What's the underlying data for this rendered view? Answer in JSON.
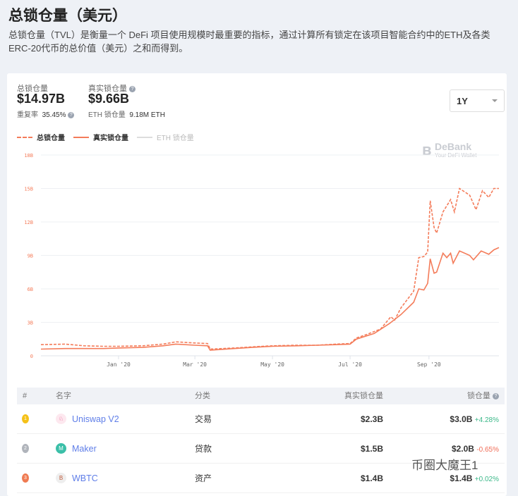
{
  "header": {
    "title": "总锁仓量（美元）",
    "description": "总锁仓量（TVL）是衡量一个 DeFi 项目使用规模时最重要的指标，通过计算所有锁定在该项目智能合约中的ETH及各类ERC-20代币的总价值（美元）之和而得到。"
  },
  "stats": {
    "tvl_label": "总锁仓量",
    "tvl_value": "$14.97B",
    "dup_label": "重复率",
    "dup_value": "35.45%",
    "real_label": "真实锁仓量",
    "real_value": "$9.66B",
    "eth_label": "ETH 锁仓量",
    "eth_value": "9.18M ETH"
  },
  "range_select": {
    "value": "1Y"
  },
  "legend": {
    "total": "总锁仓量",
    "real": "真实锁仓量",
    "eth": "ETH 锁仓量"
  },
  "watermark": {
    "brand": "DeBank",
    "tagline": "Your DeFi Wallet"
  },
  "colors": {
    "accent": "#f47c5a",
    "link": "#5f7ee8",
    "up": "#3bb889",
    "down": "#f06b55"
  },
  "chart_data": {
    "type": "line",
    "ylim": [
      0,
      18
    ],
    "y_ticks": [
      "0",
      "3B",
      "6B",
      "9B",
      "12B",
      "15B",
      "18B"
    ],
    "x_ticks": [
      {
        "date": "2020-01-01",
        "label": "Jan '20"
      },
      {
        "date": "2020-03-01",
        "label": "Mar '20"
      },
      {
        "date": "2020-05-01",
        "label": "May '20"
      },
      {
        "date": "2020-07-01",
        "label": "Jul '20"
      },
      {
        "date": "2020-09-01",
        "label": "Sep '20"
      }
    ],
    "xlim": [
      "2019-11-01",
      "2020-10-26"
    ],
    "series": [
      {
        "name": "总锁仓量",
        "style": "dashed",
        "points": [
          [
            "2019-11-01",
            1.0
          ],
          [
            "2019-11-20",
            1.05
          ],
          [
            "2019-12-05",
            0.9
          ],
          [
            "2019-12-20",
            0.85
          ],
          [
            "2020-01-01",
            0.85
          ],
          [
            "2020-01-20",
            0.9
          ],
          [
            "2020-02-05",
            1.05
          ],
          [
            "2020-02-15",
            1.25
          ],
          [
            "2020-03-01",
            1.15
          ],
          [
            "2020-03-11",
            1.1
          ],
          [
            "2020-03-13",
            0.6
          ],
          [
            "2020-04-01",
            0.7
          ],
          [
            "2020-04-15",
            0.8
          ],
          [
            "2020-05-01",
            0.9
          ],
          [
            "2020-05-20",
            0.95
          ],
          [
            "2020-06-05",
            0.95
          ],
          [
            "2020-06-20",
            1.05
          ],
          [
            "2020-07-01",
            1.1
          ],
          [
            "2020-07-06",
            1.6
          ],
          [
            "2020-07-15",
            1.95
          ],
          [
            "2020-07-25",
            2.4
          ],
          [
            "2020-08-02",
            3.5
          ],
          [
            "2020-08-05",
            3.2
          ],
          [
            "2020-08-10",
            4.3
          ],
          [
            "2020-08-20",
            5.8
          ],
          [
            "2020-08-24",
            8.8
          ],
          [
            "2020-08-28",
            8.9
          ],
          [
            "2020-08-31",
            9.3
          ],
          [
            "2020-09-02",
            13.9
          ],
          [
            "2020-09-05",
            11.5
          ],
          [
            "2020-09-07",
            11.0
          ],
          [
            "2020-09-12",
            12.9
          ],
          [
            "2020-09-18",
            14.0
          ],
          [
            "2020-09-21",
            12.9
          ],
          [
            "2020-09-25",
            15.0
          ],
          [
            "2020-10-03",
            14.4
          ],
          [
            "2020-10-08",
            13.1
          ],
          [
            "2020-10-13",
            14.8
          ],
          [
            "2020-10-18",
            14.2
          ],
          [
            "2020-10-22",
            15.0
          ],
          [
            "2020-10-26",
            15.0
          ]
        ]
      },
      {
        "name": "真实锁仓量",
        "style": "solid",
        "points": [
          [
            "2019-11-01",
            0.6
          ],
          [
            "2019-11-20",
            0.65
          ],
          [
            "2019-12-20",
            0.65
          ],
          [
            "2020-01-01",
            0.7
          ],
          [
            "2020-01-20",
            0.75
          ],
          [
            "2020-02-05",
            0.9
          ],
          [
            "2020-02-15",
            1.05
          ],
          [
            "2020-03-01",
            0.95
          ],
          [
            "2020-03-11",
            0.9
          ],
          [
            "2020-03-13",
            0.5
          ],
          [
            "2020-04-01",
            0.65
          ],
          [
            "2020-04-15",
            0.75
          ],
          [
            "2020-05-01",
            0.85
          ],
          [
            "2020-05-20",
            0.9
          ],
          [
            "2020-06-05",
            0.95
          ],
          [
            "2020-06-20",
            1.0
          ],
          [
            "2020-07-01",
            1.05
          ],
          [
            "2020-07-06",
            1.5
          ],
          [
            "2020-07-20",
            2.0
          ],
          [
            "2020-08-01",
            2.9
          ],
          [
            "2020-08-10",
            3.7
          ],
          [
            "2020-08-20",
            4.8
          ],
          [
            "2020-08-24",
            6.0
          ],
          [
            "2020-08-28",
            5.9
          ],
          [
            "2020-08-31",
            6.5
          ],
          [
            "2020-09-02",
            8.7
          ],
          [
            "2020-09-05",
            7.4
          ],
          [
            "2020-09-07",
            7.5
          ],
          [
            "2020-09-12",
            9.2
          ],
          [
            "2020-09-15",
            8.8
          ],
          [
            "2020-09-18",
            9.2
          ],
          [
            "2020-09-20",
            8.3
          ],
          [
            "2020-09-25",
            9.4
          ],
          [
            "2020-10-03",
            9.0
          ],
          [
            "2020-10-06",
            8.6
          ],
          [
            "2020-10-12",
            9.4
          ],
          [
            "2020-10-18",
            9.1
          ],
          [
            "2020-10-22",
            9.5
          ],
          [
            "2020-10-26",
            9.7
          ]
        ]
      }
    ]
  },
  "table": {
    "headers": [
      "#",
      "名字",
      "分类",
      "真实锁仓量",
      "锁仓量"
    ],
    "rows": [
      {
        "rank": "1",
        "name": "Uniswap V2",
        "category": "交易",
        "real": "$2.3B",
        "tvl": "$3.0B",
        "change": "+4.28%",
        "dir": "up"
      },
      {
        "rank": "2",
        "name": "Maker",
        "category": "贷款",
        "real": "$1.5B",
        "tvl": "$2.0B",
        "change": "-0.65%",
        "dir": "down"
      },
      {
        "rank": "3",
        "name": "WBTC",
        "category": "资产",
        "real": "$1.4B",
        "tvl": "$1.4B",
        "change": "+0.02%",
        "dir": "up"
      }
    ]
  },
  "overlay_watermark": "币圈大魔王1"
}
